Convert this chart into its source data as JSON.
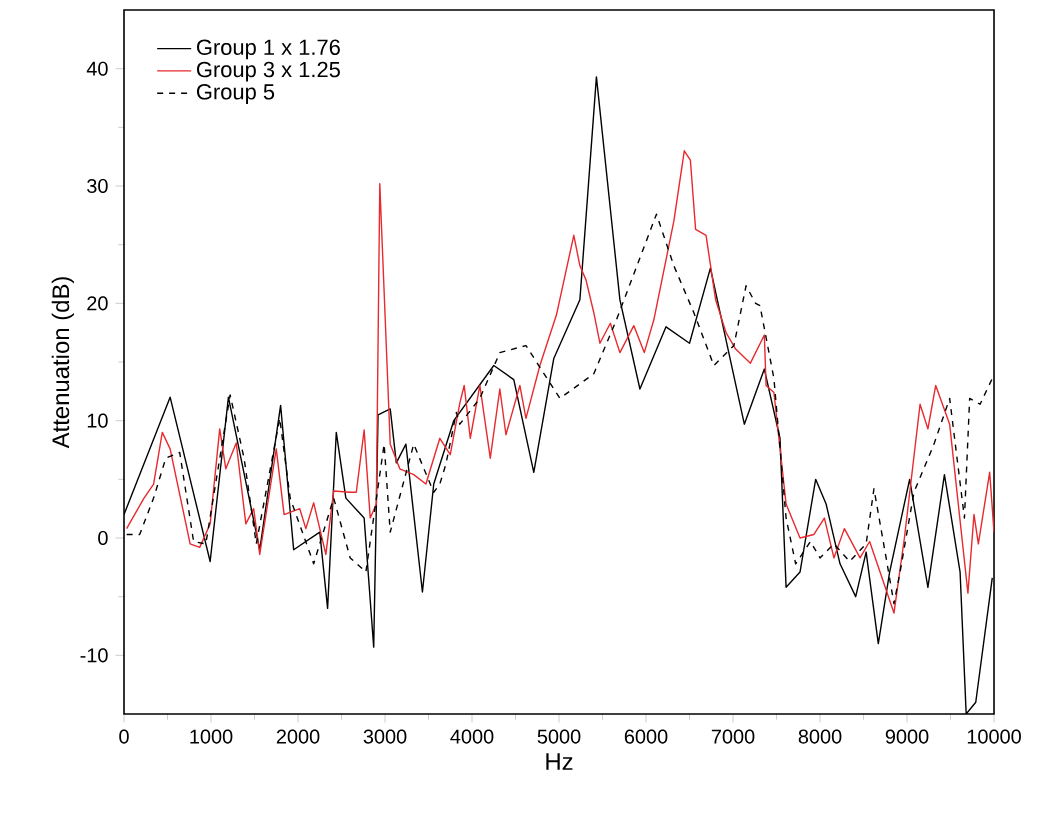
{
  "chart_data": {
    "type": "line",
    "xlabel": "Hz",
    "ylabel": "Attenuation (dB)",
    "xlim": [
      0,
      10000
    ],
    "ylim": [
      -15,
      45
    ],
    "xticks": [
      0,
      1000,
      2000,
      3000,
      4000,
      5000,
      6000,
      7000,
      8000,
      9000,
      10000
    ],
    "yticks": [
      -10,
      0,
      10,
      20,
      30,
      40
    ],
    "legend": "top left",
    "grid": false,
    "series": [
      {
        "name": "Group 1 x 1.76",
        "color": "#000000",
        "line_style": "solid",
        "x": [
          0,
          530,
          990,
          1200,
          1560,
          1800,
          1950,
          2250,
          2340,
          2440,
          2550,
          2760,
          2870,
          2920,
          3060,
          3130,
          3240,
          3430,
          3560,
          3790,
          4250,
          4480,
          4710,
          4940,
          5240,
          5430,
          5700,
          5930,
          6230,
          6500,
          6740,
          7130,
          7360,
          7540,
          7610,
          7770,
          7950,
          8070,
          8230,
          8410,
          8530,
          8670,
          8800,
          9030,
          9240,
          9430,
          9610,
          9680,
          9790,
          9980
        ],
        "values": [
          2,
          12,
          -2,
          12,
          -1,
          11.3,
          -1,
          0.5,
          -6,
          9,
          3.4,
          1.7,
          -9.3,
          10.5,
          11,
          6.4,
          8,
          -4.6,
          4.6,
          10,
          14.7,
          13.5,
          5.6,
          15.3,
          20.3,
          39.3,
          20.3,
          12.7,
          18,
          16.6,
          23,
          9.7,
          14.4,
          8.5,
          -4.2,
          -2.9,
          5,
          2.9,
          -2.2,
          -5,
          -1.2,
          -9,
          -2.9,
          5,
          -4.2,
          5.4,
          -2.9,
          -15,
          -14,
          -3.4
        ]
      },
      {
        "name": "Group 3 x 1.25",
        "color": "#e8292d",
        "line_style": "solid",
        "x": [
          30,
          230,
          340,
          440,
          530,
          760,
          870,
          990,
          1100,
          1170,
          1290,
          1400,
          1490,
          1560,
          1750,
          1840,
          2020,
          2090,
          2180,
          2320,
          2410,
          2600,
          2670,
          2760,
          2830,
          2900,
          2940,
          3060,
          3170,
          3330,
          3470,
          3630,
          3750,
          3860,
          3910,
          3980,
          4090,
          4210,
          4320,
          4390,
          4550,
          4620,
          4780,
          4970,
          5170,
          5240,
          5310,
          5400,
          5470,
          5590,
          5700,
          5860,
          5980,
          6090,
          6320,
          6440,
          6510,
          6570,
          6690,
          6800,
          6920,
          7030,
          7200,
          7360,
          7380,
          7470,
          7610,
          7770,
          7930,
          8050,
          8160,
          8280,
          8460,
          8570,
          8690,
          8850,
          8970,
          9150,
          9240,
          9330,
          9490,
          9700,
          9770,
          9820,
          9950,
          10000
        ],
        "values": [
          0.8,
          3.4,
          4.6,
          9,
          7.6,
          -0.5,
          -0.8,
          1.2,
          9.3,
          5.9,
          8.1,
          1.2,
          2.5,
          -1.4,
          7.6,
          2,
          2.5,
          0.8,
          3,
          -1.4,
          4,
          3.9,
          3.9,
          9.2,
          1.7,
          2.9,
          30.2,
          8,
          5.9,
          5.4,
          4.6,
          8.5,
          7.1,
          11.5,
          13,
          8.5,
          13,
          6.8,
          12.7,
          8.8,
          13,
          10.2,
          14.7,
          19,
          25.8,
          23.2,
          22,
          19.2,
          16.6,
          18.3,
          15.8,
          18.1,
          15.8,
          18.6,
          27,
          33,
          32.2,
          26.3,
          25.8,
          20.3,
          17.5,
          16.1,
          14.9,
          17.3,
          13,
          12.4,
          2.9,
          0,
          0.3,
          1.7,
          -1.7,
          0.8,
          -1.7,
          -0.3,
          -2.9,
          -6.4,
          0,
          11.4,
          9.3,
          13,
          9.7,
          -4.7,
          2,
          -0.5,
          5.6,
          0.5
        ]
      },
      {
        "name": "Group 5",
        "color": "#000000",
        "line_style": "dashed",
        "x": [
          30,
          180,
          340,
          480,
          640,
          800,
          940,
          1220,
          1380,
          1520,
          1790,
          1910,
          2180,
          2410,
          2600,
          2780,
          2990,
          3060,
          3330,
          3560,
          3630,
          3700,
          3820,
          3860,
          4090,
          4320,
          4620,
          5010,
          5400,
          5660,
          5860,
          6120,
          6320,
          6550,
          6780,
          7010,
          7150,
          7260,
          7310,
          7470,
          7610,
          7720,
          7890,
          8000,
          8160,
          8340,
          8530,
          8620,
          8760,
          8850,
          8920,
          9080,
          9310,
          9490,
          9660,
          9720,
          9840,
          9980
        ],
        "values": [
          0.3,
          0.3,
          3.4,
          6.8,
          7.3,
          -0.3,
          -0.5,
          12.2,
          6.8,
          -0.5,
          10.2,
          3.4,
          -2.2,
          3.4,
          -1.7,
          -2.9,
          8,
          0.5,
          8,
          3.9,
          4.6,
          6.3,
          10.7,
          9.7,
          11.9,
          15.8,
          16.4,
          11.9,
          14,
          18.6,
          22.5,
          27.6,
          23.2,
          19.2,
          14.7,
          16.4,
          21.5,
          20,
          19.8,
          13.6,
          1.7,
          -2.2,
          -0.3,
          -1.7,
          -0.5,
          -2,
          -0.5,
          4.2,
          -1.7,
          -5.6,
          -2.9,
          3.9,
          8,
          11.9,
          1.7,
          11.9,
          11.4,
          13.6
        ]
      }
    ]
  }
}
